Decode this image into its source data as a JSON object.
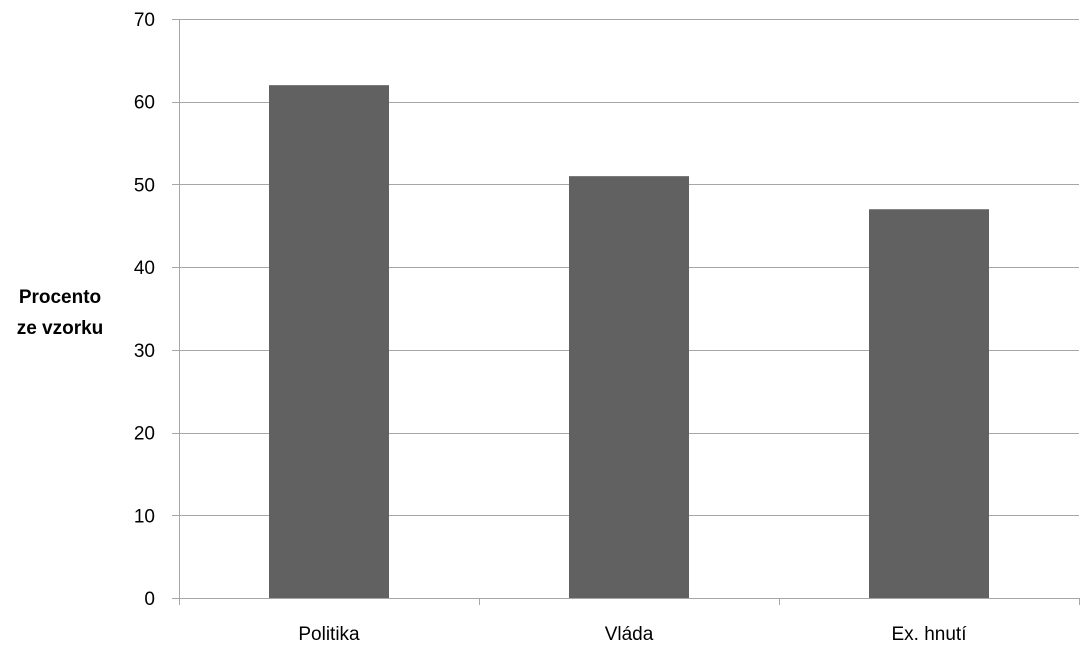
{
  "chart_data": {
    "type": "bar",
    "title": "",
    "xlabel": "",
    "ylabel_lines": [
      "Procento",
      "ze vzorku"
    ],
    "categories": [
      "Politika",
      "Vláda",
      "Ex. hnutí"
    ],
    "values": [
      62,
      51,
      47
    ],
    "ylim": [
      0,
      70
    ],
    "yticks": [
      0,
      10,
      20,
      30,
      40,
      50,
      60,
      70
    ],
    "grid": true,
    "legend": "none",
    "bar_color": "#616161",
    "grid_color": "#a6a6a6",
    "axis_color": "#a6a6a6"
  }
}
